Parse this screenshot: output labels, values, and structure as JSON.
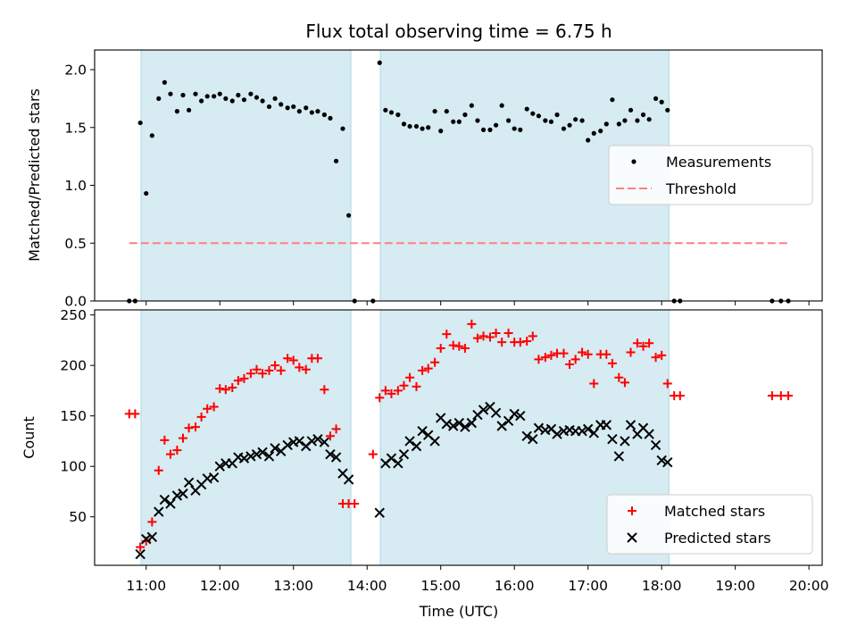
{
  "chart_data": {
    "title": "Flux total observing time = 6.75 h",
    "xlabel": "Time (UTC)",
    "x_tick_labels": [
      "11:00",
      "12:00",
      "13:00",
      "14:00",
      "15:00",
      "16:00",
      "17:00",
      "18:00",
      "19:00",
      "20:00"
    ],
    "x_ticks_hours": [
      11,
      12,
      13,
      14,
      15,
      16,
      17,
      18,
      19,
      20
    ],
    "xlim_hours": [
      10.3,
      20.18
    ],
    "shaded_intervals_hours": [
      [
        10.93,
        13.78
      ],
      [
        14.18,
        18.1
      ]
    ],
    "shade_color": "#add8e6",
    "panels": [
      {
        "type": "scatter",
        "ylabel": "Matched/Predicted stars",
        "ylim": [
          0,
          2.17
        ],
        "y_ticks": [
          0.0,
          0.5,
          1.0,
          1.5,
          2.0
        ],
        "y_tick_labels": [
          "0.0",
          "0.5",
          "1.0",
          "1.5",
          "2.0"
        ],
        "legend_position": "center-right",
        "series": [
          {
            "name": "Measurements",
            "kind": "dot",
            "color": "#000000",
            "x": [
              10.77,
              10.85,
              10.92,
              11.0,
              11.08,
              11.17,
              11.25,
              11.33,
              11.42,
              11.5,
              11.58,
              11.67,
              11.75,
              11.83,
              11.92,
              12.0,
              12.08,
              12.17,
              12.25,
              12.33,
              12.42,
              12.5,
              12.58,
              12.67,
              12.75,
              12.83,
              12.92,
              13.0,
              13.08,
              13.17,
              13.25,
              13.33,
              13.42,
              13.5,
              13.58,
              13.67,
              13.75,
              13.83,
              14.08,
              14.17,
              14.25,
              14.33,
              14.42,
              14.5,
              14.58,
              14.67,
              14.75,
              14.83,
              14.92,
              15.0,
              15.08,
              15.17,
              15.25,
              15.33,
              15.42,
              15.5,
              15.58,
              15.67,
              15.75,
              15.83,
              15.92,
              16.0,
              16.08,
              16.17,
              16.25,
              16.33,
              16.42,
              16.5,
              16.58,
              16.67,
              16.75,
              16.83,
              16.92,
              17.0,
              17.08,
              17.17,
              17.25,
              17.33,
              17.42,
              17.5,
              17.58,
              17.67,
              17.75,
              17.83,
              17.92,
              18.0,
              18.08,
              18.17,
              18.25,
              19.5,
              19.62,
              19.72
            ],
            "y": [
              0,
              0,
              1.54,
              0.93,
              1.43,
              1.75,
              1.89,
              1.79,
              1.64,
              1.78,
              1.65,
              1.79,
              1.73,
              1.77,
              1.77,
              1.79,
              1.75,
              1.73,
              1.78,
              1.74,
              1.79,
              1.76,
              1.73,
              1.68,
              1.75,
              1.7,
              1.67,
              1.68,
              1.64,
              1.67,
              1.63,
              1.64,
              1.61,
              1.58,
              1.21,
              1.49,
              0.74,
              0,
              0,
              2.06,
              1.65,
              1.63,
              1.61,
              1.53,
              1.51,
              1.51,
              1.49,
              1.5,
              1.64,
              1.47,
              1.64,
              1.55,
              1.55,
              1.61,
              1.69,
              1.56,
              1.48,
              1.48,
              1.52,
              1.69,
              1.56,
              1.49,
              1.48,
              1.66,
              1.62,
              1.6,
              1.56,
              1.55,
              1.61,
              1.49,
              1.52,
              1.57,
              1.56,
              1.39,
              1.45,
              1.47,
              1.53,
              1.74,
              1.53,
              1.56,
              1.65,
              1.56,
              1.61,
              1.57,
              1.75,
              1.72,
              1.65,
              0,
              0,
              0,
              0,
              0
            ]
          },
          {
            "name": "Threshold",
            "kind": "dashed-line",
            "color": "#ff7f7f",
            "x": [
              10.77,
              19.72
            ],
            "y": [
              0.5,
              0.5
            ]
          }
        ]
      },
      {
        "type": "scatter",
        "ylabel": "Count",
        "ylim": [
          2,
          255
        ],
        "y_ticks": [
          50,
          100,
          150,
          200,
          250
        ],
        "y_tick_labels": [
          "50",
          "100",
          "150",
          "200",
          "250"
        ],
        "legend_position": "lower-right",
        "series": [
          {
            "name": "Matched stars",
            "kind": "plus",
            "color": "#ff0000",
            "x": [
              10.77,
              10.85,
              10.92,
              11.0,
              11.08,
              11.17,
              11.25,
              11.33,
              11.42,
              11.5,
              11.58,
              11.67,
              11.75,
              11.83,
              11.92,
              12.0,
              12.08,
              12.17,
              12.25,
              12.33,
              12.42,
              12.5,
              12.58,
              12.67,
              12.75,
              12.83,
              12.92,
              13.0,
              13.08,
              13.17,
              13.25,
              13.33,
              13.42,
              13.5,
              13.58,
              13.67,
              13.75,
              13.83,
              14.08,
              14.17,
              14.25,
              14.33,
              14.42,
              14.5,
              14.58,
              14.67,
              14.75,
              14.83,
              14.92,
              15.0,
              15.08,
              15.17,
              15.25,
              15.33,
              15.42,
              15.5,
              15.58,
              15.67,
              15.75,
              15.83,
              15.92,
              16.0,
              16.08,
              16.17,
              16.25,
              16.33,
              16.42,
              16.5,
              16.58,
              16.67,
              16.75,
              16.83,
              16.92,
              17.0,
              17.08,
              17.17,
              17.25,
              17.33,
              17.42,
              17.5,
              17.58,
              17.67,
              17.75,
              17.83,
              17.92,
              18.0,
              18.08,
              18.17,
              18.25,
              19.5,
              19.62,
              19.72
            ],
            "y": [
              152,
              152,
              20,
              26,
              45,
              96,
              126,
              112,
              116,
              128,
              138,
              139,
              149,
              157,
              159,
              177,
              176,
              178,
              185,
              187,
              192,
              196,
              192,
              195,
              200,
              195,
              207,
              205,
              198,
              196,
              207,
              207,
              176,
              130,
              137,
              63,
              63,
              63,
              112,
              168,
              175,
              172,
              175,
              180,
              188,
              179,
              195,
              197,
              203,
              217,
              231,
              220,
              219,
              217,
              241,
              227,
              229,
              228,
              232,
              223,
              232,
              223,
              223,
              224,
              229,
              206,
              208,
              210,
              212,
              212,
              201,
              206,
              213,
              211,
              182,
              211,
              211,
              202,
              188,
              183,
              213,
              222,
              219,
              222,
              208,
              210,
              182,
              170,
              170,
              170,
              170,
              170
            ]
          },
          {
            "name": "Predicted stars",
            "kind": "x",
            "color": "#000000",
            "x": [
              10.92,
              11.0,
              11.08,
              11.17,
              11.25,
              11.33,
              11.42,
              11.5,
              11.58,
              11.67,
              11.75,
              11.83,
              11.92,
              12.0,
              12.08,
              12.17,
              12.25,
              12.33,
              12.42,
              12.5,
              12.58,
              12.67,
              12.75,
              12.83,
              12.92,
              13.0,
              13.08,
              13.17,
              13.25,
              13.33,
              13.42,
              13.5,
              13.58,
              13.67,
              13.75,
              14.17,
              14.25,
              14.33,
              14.42,
              14.5,
              14.58,
              14.67,
              14.75,
              14.83,
              14.92,
              15.0,
              15.08,
              15.17,
              15.25,
              15.33,
              15.42,
              15.5,
              15.58,
              15.67,
              15.75,
              15.83,
              15.92,
              16.0,
              16.08,
              16.17,
              16.25,
              16.33,
              16.42,
              16.5,
              16.58,
              16.67,
              16.75,
              16.83,
              16.92,
              17.0,
              17.08,
              17.17,
              17.25,
              17.33,
              17.42,
              17.5,
              17.58,
              17.67,
              17.75,
              17.83,
              17.92,
              18.0,
              18.08
            ],
            "y": [
              13,
              28,
              30,
              55,
              67,
              63,
              71,
              73,
              84,
              76,
              82,
              88,
              89,
              100,
              103,
              103,
              109,
              108,
              110,
              112,
              114,
              110,
              118,
              115,
              121,
              124,
              125,
              120,
              125,
              127,
              124,
              112,
              109,
              93,
              87,
              54,
              103,
              108,
              103,
              112,
              125,
              120,
              135,
              131,
              125,
              148,
              142,
              140,
              143,
              139,
              143,
              151,
              156,
              159,
              153,
              140,
              145,
              152,
              150,
              130,
              127,
              138,
              136,
              137,
              132,
              135,
              136,
              135,
              135,
              137,
              133,
              141,
              141,
              127,
              110,
              125,
              141,
              132,
              138,
              132,
              121,
              106,
              104
            ]
          }
        ]
      }
    ]
  }
}
